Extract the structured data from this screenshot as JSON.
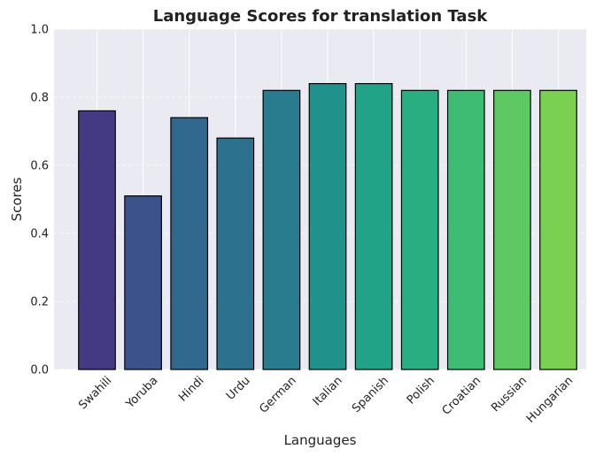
{
  "chart_data": {
    "type": "bar",
    "title": "Language Scores for translation Task",
    "xlabel": "Languages",
    "ylabel": "Scores",
    "categories": [
      "Swahili",
      "Yoruba",
      "Hindi",
      "Urdu",
      "German",
      "Italian",
      "Spanish",
      "Polish",
      "Croatian",
      "Russian",
      "Hungarian"
    ],
    "values": [
      0.76,
      0.51,
      0.74,
      0.68,
      0.82,
      0.84,
      0.84,
      0.82,
      0.82,
      0.82,
      0.82
    ],
    "colors": [
      "#443a83",
      "#3b528b",
      "#31688e",
      "#2c728e",
      "#287c8e",
      "#21918c",
      "#20a386",
      "#28ae80",
      "#3fbc73",
      "#5ec962",
      "#7ad151"
    ],
    "ylim": [
      0,
      1.0
    ],
    "yticks": [
      "0.0",
      "0.2",
      "0.4",
      "0.6",
      "0.8",
      "1.0"
    ],
    "grid": true,
    "background": "#eaeaf2",
    "bar_edge_color": "#000000"
  }
}
